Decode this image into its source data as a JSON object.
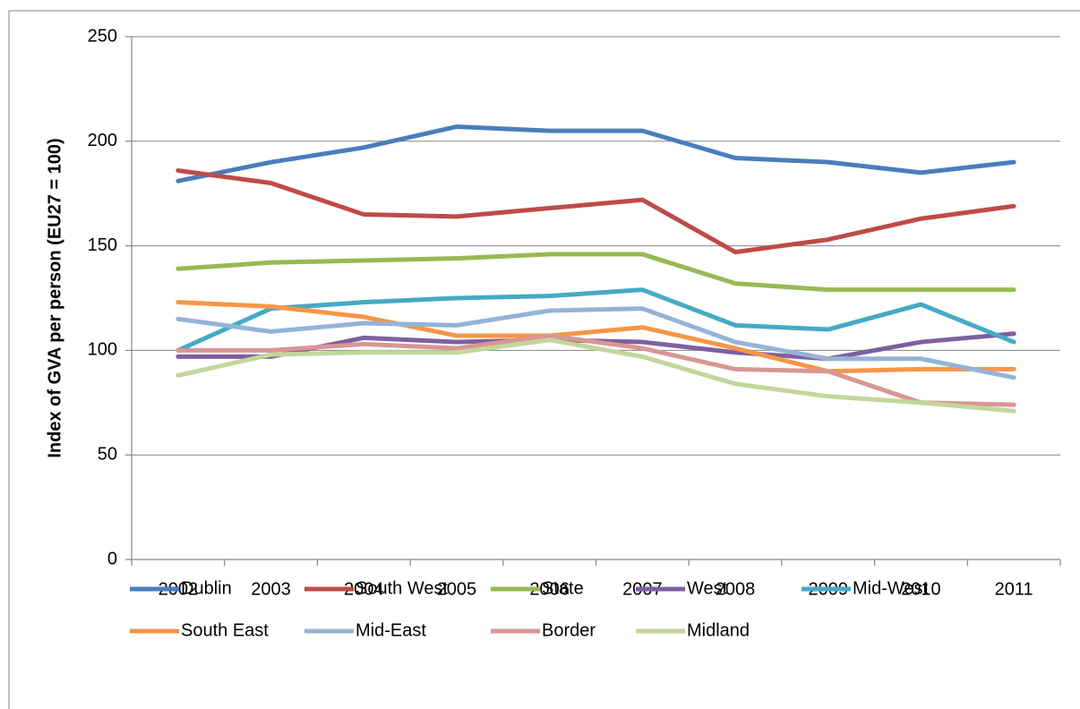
{
  "chart_data": {
    "type": "line",
    "y_label": "Index of GVA per person (EU27 = 100)",
    "categories": [
      "2002",
      "2003",
      "2004",
      "2005",
      "2006",
      "2007",
      "2008",
      "2009",
      "2010",
      "2011"
    ],
    "ylim": [
      0,
      250
    ],
    "yticks": [
      0,
      50,
      100,
      150,
      200,
      250
    ],
    "grid": true,
    "series": [
      {
        "name": "Dublin",
        "color": "#4a7ebb",
        "values": [
          181,
          190,
          197,
          207,
          205,
          205,
          192,
          190,
          185,
          190
        ]
      },
      {
        "name": "South West",
        "color": "#be4b48",
        "values": [
          186,
          180,
          165,
          164,
          168,
          172,
          147,
          153,
          163,
          169
        ]
      },
      {
        "name": "State",
        "color": "#98b954",
        "values": [
          139,
          142,
          143,
          144,
          146,
          146,
          132,
          129,
          129,
          129
        ]
      },
      {
        "name": "West",
        "color": "#7d60a0",
        "values": [
          97,
          97,
          106,
          104,
          105,
          104,
          99,
          96,
          104,
          108
        ]
      },
      {
        "name": "Mid-West",
        "color": "#46aac5",
        "values": [
          100,
          120,
          123,
          125,
          126,
          129,
          112,
          110,
          122,
          104
        ]
      },
      {
        "name": "South East",
        "color": "#f79646",
        "values": [
          123,
          121,
          116,
          107,
          107,
          111,
          101,
          90,
          91,
          91
        ]
      },
      {
        "name": "Mid-East",
        "color": "#95b3d7",
        "values": [
          115,
          109,
          113,
          112,
          119,
          120,
          104,
          96,
          96,
          87
        ]
      },
      {
        "name": "Border",
        "color": "#d99694",
        "values": [
          100,
          100,
          103,
          101,
          107,
          101,
          91,
          90,
          75,
          74
        ]
      },
      {
        "name": "Midland",
        "color": "#c3d69b",
        "values": [
          88,
          98,
          99,
          99,
          105,
          97,
          84,
          78,
          75,
          71
        ]
      }
    ]
  }
}
